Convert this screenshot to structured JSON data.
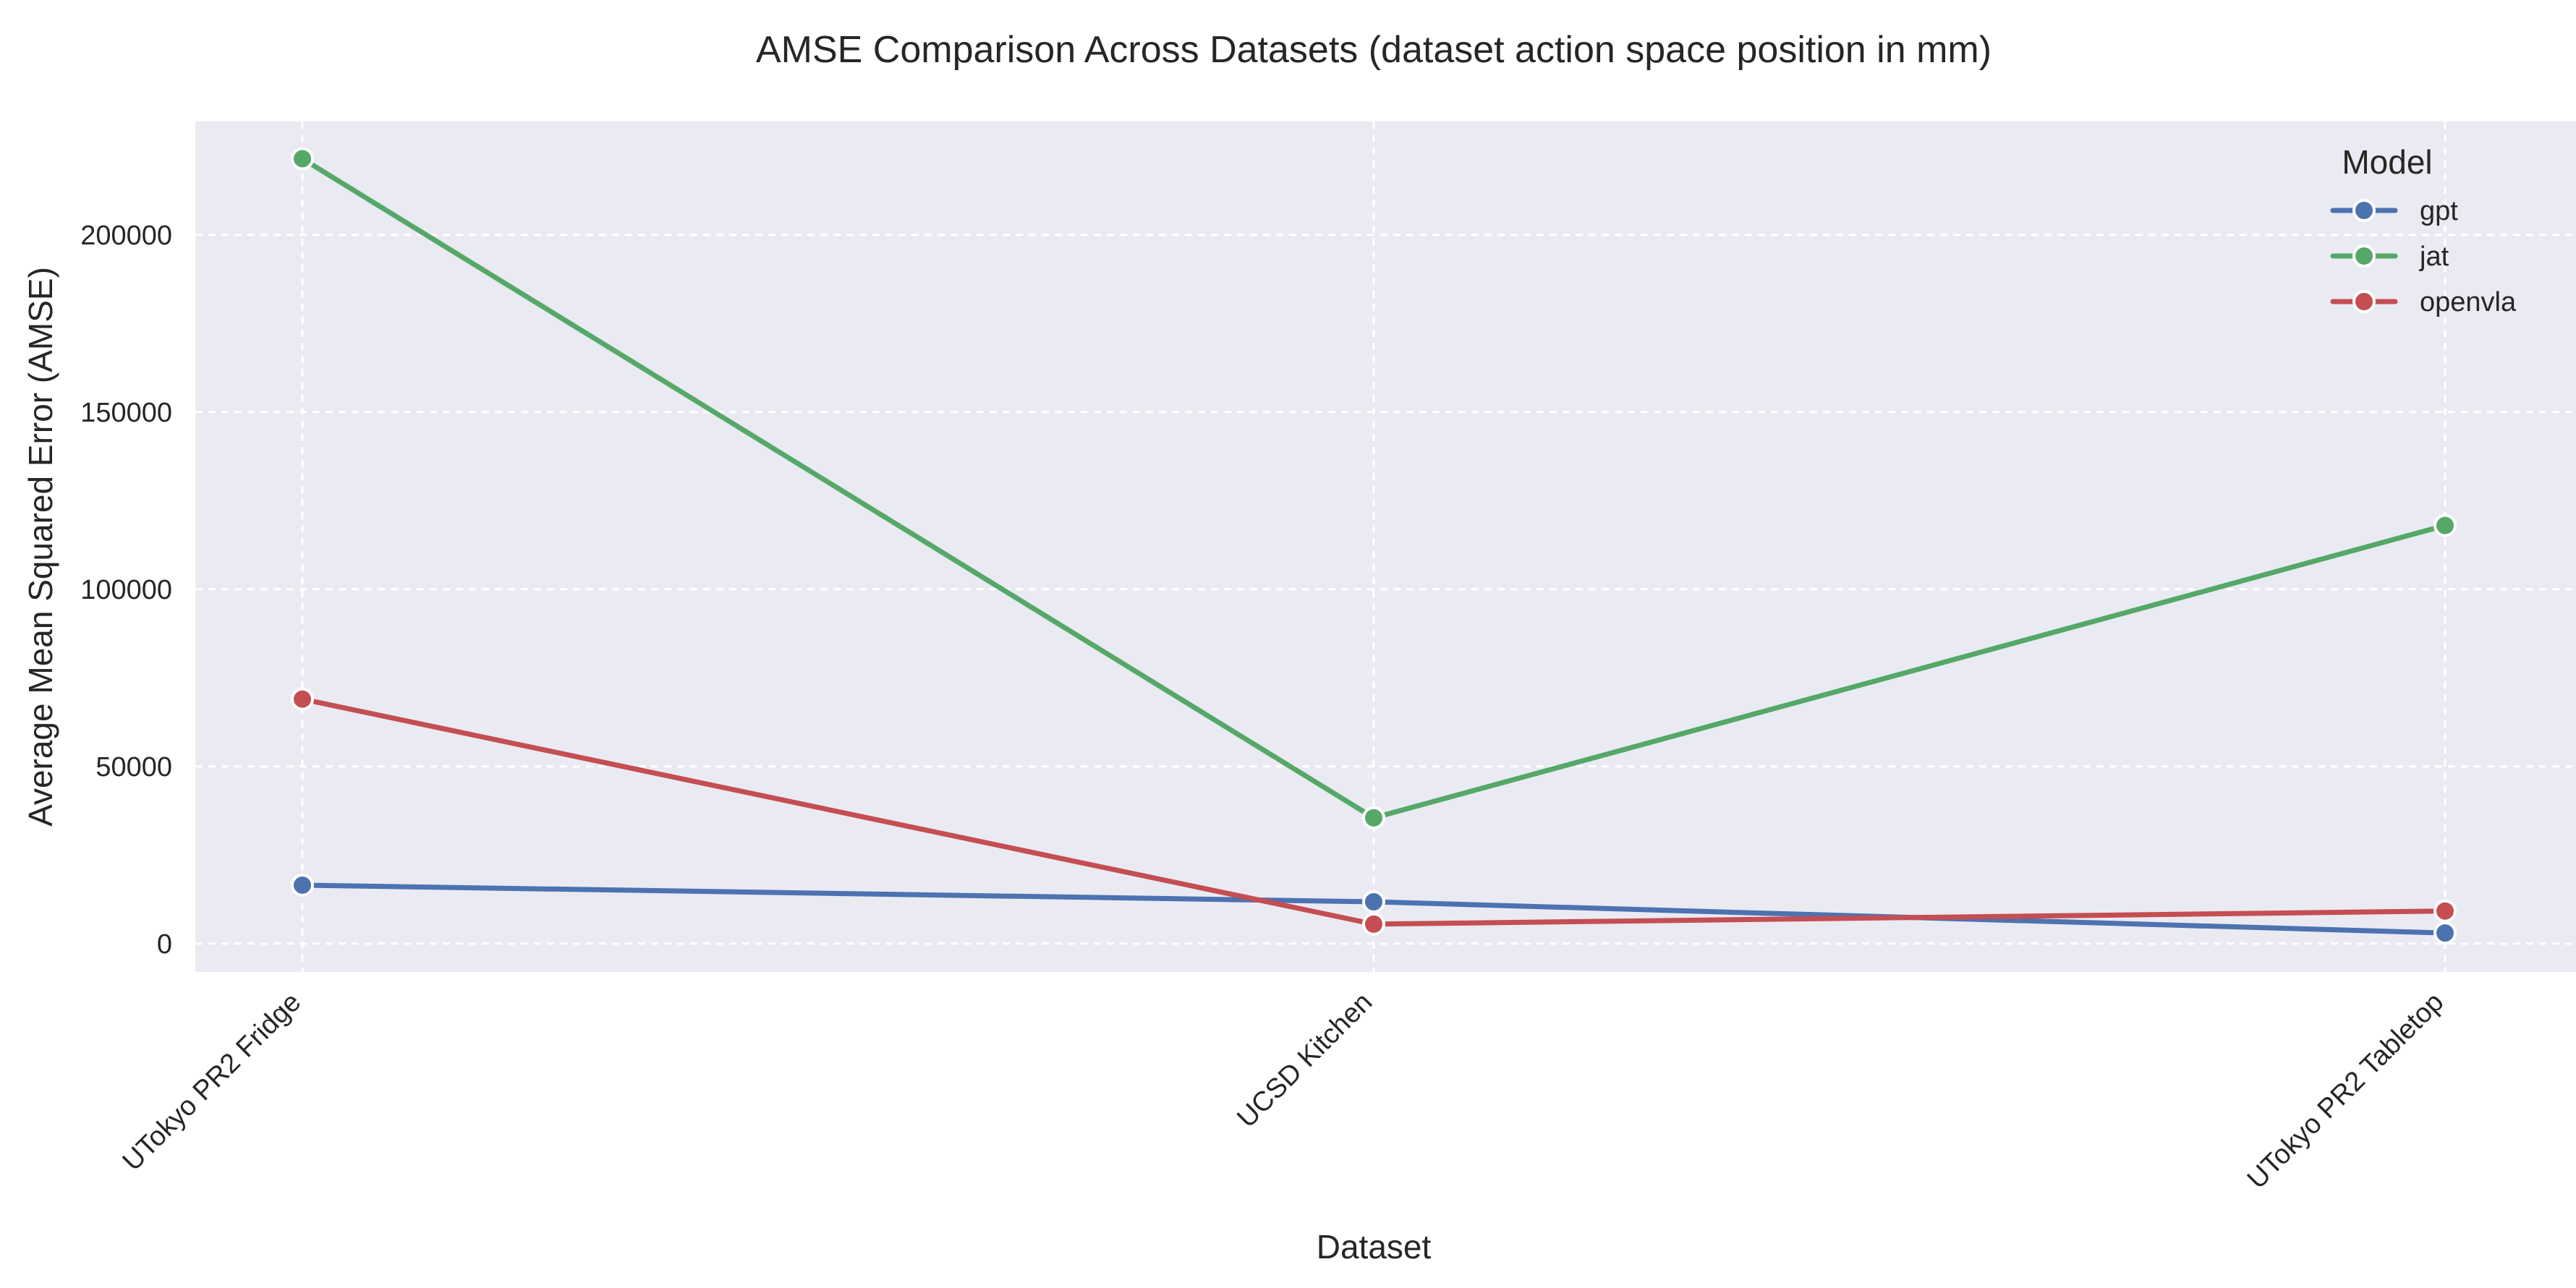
{
  "chart_data": {
    "type": "line",
    "title": "AMSE Comparison Across Datasets (dataset action space position in mm)",
    "xlabel": "Dataset",
    "ylabel": "Average Mean Squared Error (AMSE)",
    "categories": [
      "UTokyo PR2 Fridge",
      "UCSD Kitchen",
      "UTokyo PR2 Tabletop"
    ],
    "ylim": [
      -8000,
      232000
    ],
    "yticks": [
      0,
      50000,
      100000,
      150000,
      200000
    ],
    "grid": true,
    "legend": {
      "title": "Model",
      "placement": "top-right"
    },
    "series": [
      {
        "name": "gpt",
        "color": "#4c72b0",
        "values": [
          16500,
          11800,
          3000
        ]
      },
      {
        "name": "jat",
        "color": "#55a868",
        "values": [
          221500,
          35500,
          118000
        ]
      },
      {
        "name": "openvla",
        "color": "#c44e52",
        "values": [
          69000,
          5500,
          9200
        ]
      }
    ]
  }
}
